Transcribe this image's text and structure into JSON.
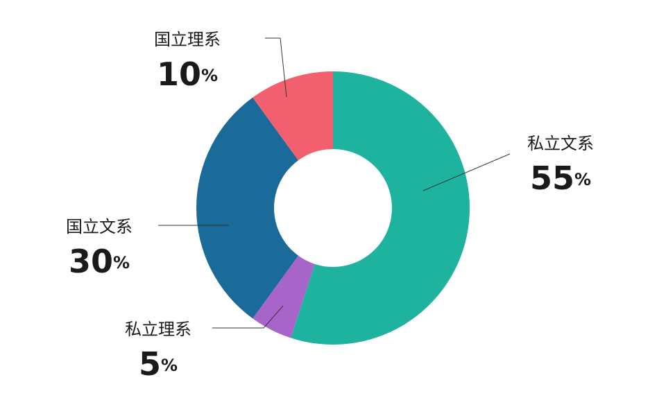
{
  "chart_data": {
    "type": "donut",
    "categories": [
      "私立文系",
      "私立理系",
      "国立文系",
      "国立理系"
    ],
    "values": [
      55,
      5,
      30,
      10
    ],
    "unit": "%",
    "colors": [
      "#1db39e",
      "#a865c9",
      "#1a6a9a",
      "#f25f6e"
    ]
  }
}
